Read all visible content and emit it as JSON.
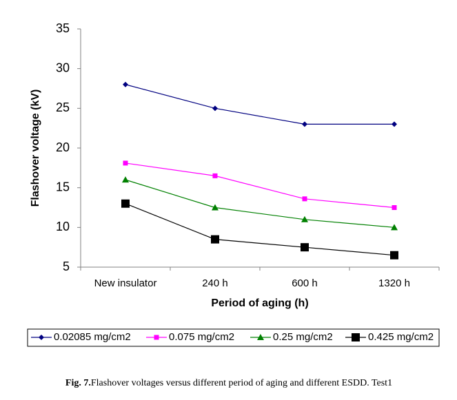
{
  "chart_data": {
    "type": "line",
    "y_label": "Flashover voltage (kV)",
    "x_label": "Period of aging (h)",
    "caption_label": "Fig. 7.",
    "caption": "Flashover voltages versus different period of aging and different ESDD. Test1",
    "categories": [
      "New insulator",
      "240 h",
      "600 h",
      "1320 h"
    ],
    "series": [
      {
        "name": "0.02085 mg/cm2",
        "color": "#000080",
        "marker": "diamond",
        "values": [
          28,
          25,
          23,
          23
        ]
      },
      {
        "name": "0.075 mg/cm2",
        "color": "#ff00ff",
        "marker": "square",
        "values": [
          18.1,
          16.5,
          13.6,
          12.5
        ]
      },
      {
        "name": "0.25 mg/cm2",
        "color": "#008000",
        "marker": "triangle",
        "values": [
          16,
          12.5,
          11,
          10
        ]
      },
      {
        "name": "0.425 mg/cm2",
        "color": "#000000",
        "marker": "big-square",
        "values": [
          13,
          8.5,
          7.5,
          6.5
        ]
      }
    ],
    "ylim": [
      5,
      35
    ],
    "yticks": [
      5,
      10,
      15,
      20,
      25,
      30,
      35
    ]
  }
}
